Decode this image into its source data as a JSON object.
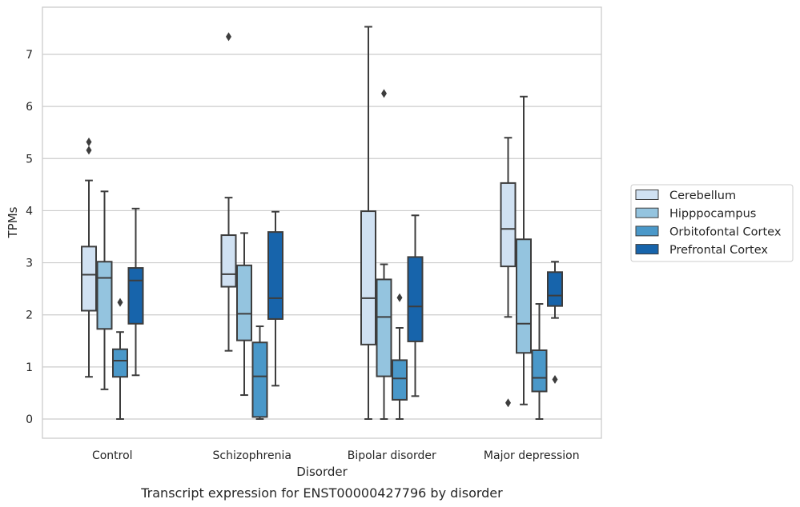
{
  "chart_data": {
    "type": "box",
    "caption": "Transcript expression for ENST00000427796 by disorder",
    "xlabel": "Disorder",
    "ylabel": "TPMs",
    "ylim": [
      -0.35,
      7.9
    ],
    "yticks": [
      0,
      1,
      2,
      3,
      4,
      5,
      6,
      7
    ],
    "grid": "horizontal",
    "legend_position": "right",
    "categories": [
      "Control",
      "Schizophrenia",
      "Bipolar disorder",
      "Major depression"
    ],
    "series": [
      {
        "name": "Cerebellum",
        "color": "#d0e1f2",
        "boxes": [
          {
            "whisker_low": 0.81,
            "q1": 2.08,
            "median": 2.77,
            "q3": 3.31,
            "whisker_high": 4.58,
            "outliers": [
              5.16,
              5.32
            ]
          },
          {
            "whisker_low": 1.31,
            "q1": 2.54,
            "median": 2.78,
            "q3": 3.53,
            "whisker_high": 4.25,
            "outliers": [
              7.34
            ]
          },
          {
            "whisker_low": 0.0,
            "q1": 1.43,
            "median": 2.32,
            "q3": 3.99,
            "whisker_high": 7.53,
            "outliers": []
          },
          {
            "whisker_low": 1.96,
            "q1": 2.93,
            "median": 3.65,
            "q3": 4.53,
            "whisker_high": 5.4,
            "outliers": [
              0.31
            ]
          }
        ]
      },
      {
        "name": "Hipppocampus",
        "color": "#94c4df",
        "boxes": [
          {
            "whisker_low": 0.57,
            "q1": 1.73,
            "median": 2.71,
            "q3": 3.02,
            "whisker_high": 4.37,
            "outliers": []
          },
          {
            "whisker_low": 0.46,
            "q1": 1.51,
            "median": 2.02,
            "q3": 2.95,
            "whisker_high": 3.57,
            "outliers": []
          },
          {
            "whisker_low": 0.0,
            "q1": 0.82,
            "median": 1.96,
            "q3": 2.68,
            "whisker_high": 2.97,
            "outliers": [
              6.25
            ]
          },
          {
            "whisker_low": 0.28,
            "q1": 1.27,
            "median": 1.83,
            "q3": 3.45,
            "whisker_high": 6.19,
            "outliers": []
          }
        ]
      },
      {
        "name": "Orbitofontal Cortex",
        "color": "#4a98c9",
        "boxes": [
          {
            "whisker_low": 0.0,
            "q1": 0.81,
            "median": 1.12,
            "q3": 1.34,
            "whisker_high": 1.67,
            "outliers": [
              2.24
            ]
          },
          {
            "whisker_low": 0.0,
            "q1": 0.04,
            "median": 0.82,
            "q3": 1.47,
            "whisker_high": 1.78,
            "outliers": []
          },
          {
            "whisker_low": 0.0,
            "q1": 0.37,
            "median": 0.78,
            "q3": 1.13,
            "whisker_high": 1.75,
            "outliers": [
              2.33
            ]
          },
          {
            "whisker_low": 0.0,
            "q1": 0.53,
            "median": 0.79,
            "q3": 1.32,
            "whisker_high": 2.21,
            "outliers": []
          }
        ]
      },
      {
        "name": "Prefrontal Cortex",
        "color": "#1764ab",
        "boxes": [
          {
            "whisker_low": 0.84,
            "q1": 1.83,
            "median": 2.66,
            "q3": 2.9,
            "whisker_high": 4.04,
            "outliers": []
          },
          {
            "whisker_low": 0.64,
            "q1": 1.92,
            "median": 2.32,
            "q3": 3.59,
            "whisker_high": 3.98,
            "outliers": []
          },
          {
            "whisker_low": 0.44,
            "q1": 1.49,
            "median": 2.16,
            "q3": 3.11,
            "whisker_high": 3.91,
            "outliers": []
          },
          {
            "whisker_low": 1.94,
            "q1": 2.17,
            "median": 2.37,
            "q3": 2.82,
            "whisker_high": 3.02,
            "outliers": [
              0.76
            ]
          }
        ]
      }
    ]
  }
}
